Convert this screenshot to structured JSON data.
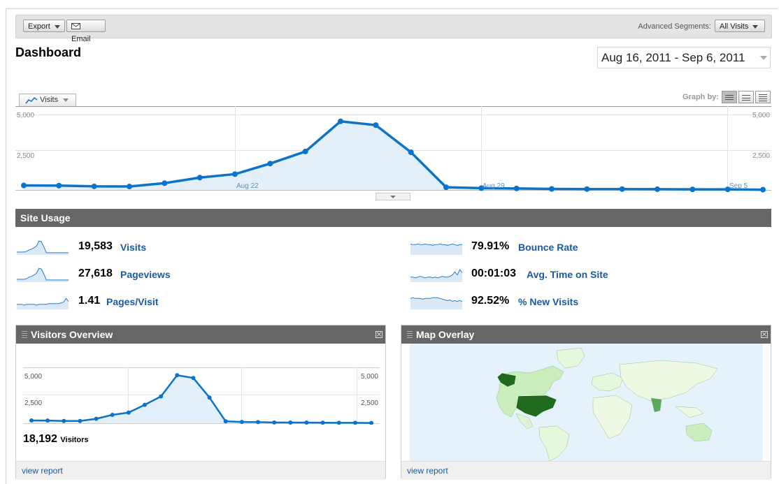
{
  "toolbar": {
    "export_label": "Export",
    "email_label": "Email",
    "segments_label": "Advanced Segments:",
    "segments_value": "All Visits"
  },
  "page_title": "Dashboard",
  "date_range": "Aug 16, 2011 - Sep 6, 2011",
  "metric_selector": "Visits",
  "graph_by_label": "Graph by:",
  "main_chart": {
    "y_ticks_left": [
      "5,000",
      "2,500"
    ],
    "y_ticks_right": [
      "5,000",
      "2,500"
    ],
    "x_labels": [
      "Aug 22",
      "Aug 29",
      "Sep 5"
    ]
  },
  "site_usage": {
    "title": "Site Usage",
    "metrics": [
      {
        "value": "19,583",
        "label": "Visits"
      },
      {
        "value": "27,618",
        "label": "Pageviews"
      },
      {
        "value": "1.41",
        "label": "Pages/Visit"
      },
      {
        "value": "79.91%",
        "label": "Bounce Rate"
      },
      {
        "value": "00:01:03",
        "label": "Avg. Time on Site"
      },
      {
        "value": "92.52%",
        "label": "% New Visits"
      }
    ]
  },
  "visitors_overview": {
    "title": "Visitors Overview",
    "y_ticks_left": [
      "5,000",
      "2,500"
    ],
    "y_ticks_right": [
      "5,000",
      "2,500"
    ],
    "visitors_value": "18,192",
    "visitors_label": "Visitors",
    "view_report": "view report"
  },
  "map_overlay": {
    "title": "Map Overlay",
    "view_report": "view report"
  },
  "colors": {
    "line": "#0b73c9",
    "area": "#e3eff9",
    "section_bar": "#666666",
    "link": "#1a5aa0"
  },
  "chart_data": [
    {
      "type": "area",
      "title": "",
      "x": [
        "Aug 16",
        "Aug 17",
        "Aug 18",
        "Aug 19",
        "Aug 20",
        "Aug 21",
        "Aug 22",
        "Aug 23",
        "Aug 24",
        "Aug 25",
        "Aug 26",
        "Aug 27",
        "Aug 28",
        "Aug 29",
        "Aug 30",
        "Aug 31",
        "Sep 1",
        "Sep 2",
        "Sep 3",
        "Sep 4",
        "Sep 5",
        "Sep 6"
      ],
      "series": [
        {
          "name": "Visits",
          "values": [
            300,
            290,
            240,
            230,
            450,
            820,
            1050,
            1750,
            2550,
            4550,
            4300,
            2500,
            180,
            120,
            100,
            70,
            60,
            60,
            50,
            40,
            40,
            20
          ]
        }
      ],
      "ylim": [
        0,
        5000
      ],
      "x_tick_labels": [
        "Aug 22",
        "Aug 29",
        "Sep 5"
      ],
      "grid": true
    },
    {
      "type": "area",
      "title": "",
      "x": [
        "Aug 16",
        "Aug 17",
        "Aug 18",
        "Aug 19",
        "Aug 20",
        "Aug 21",
        "Aug 22",
        "Aug 23",
        "Aug 24",
        "Aug 25",
        "Aug 26",
        "Aug 27",
        "Aug 28",
        "Aug 29",
        "Aug 30",
        "Aug 31",
        "Sep 1",
        "Sep 2",
        "Sep 3",
        "Sep 4",
        "Sep 5",
        "Sep 6"
      ],
      "series": [
        {
          "name": "Visitors",
          "values": [
            250,
            240,
            200,
            200,
            400,
            750,
            950,
            1650,
            2400,
            4300,
            4050,
            2300,
            170,
            120,
            100,
            70,
            60,
            60,
            50,
            40,
            40,
            20
          ]
        }
      ],
      "ylim": [
        0,
        5000
      ],
      "grid": true
    }
  ],
  "sparklines": {
    "Visits": [
      3,
      3,
      3,
      3,
      4,
      6,
      7,
      9,
      11,
      18,
      17,
      10,
      2,
      2,
      2,
      2,
      2,
      2,
      2,
      2,
      2,
      2
    ],
    "Pageviews": [
      3,
      3,
      3,
      3,
      4,
      6,
      7,
      9,
      11,
      18,
      17,
      10,
      2,
      2,
      2,
      2,
      2,
      2,
      2,
      2,
      2,
      2
    ],
    "Pages/Visit": [
      6,
      6,
      6,
      5,
      6,
      6,
      6,
      6,
      5,
      6,
      6,
      6,
      6,
      7,
      7,
      7,
      7,
      7,
      8,
      9,
      14,
      10
    ],
    "Bounce Rate": [
      14,
      13,
      13,
      14,
      13,
      13,
      14,
      13,
      13,
      12,
      13,
      13,
      14,
      13,
      13,
      12,
      13,
      14,
      13,
      12,
      13,
      13
    ],
    "Avg. Time on Site": [
      6,
      6,
      5,
      6,
      7,
      6,
      5,
      6,
      6,
      5,
      6,
      5,
      6,
      7,
      6,
      6,
      7,
      9,
      13,
      9,
      16,
      12
    ],
    "% New Visits": [
      14,
      15,
      14,
      14,
      14,
      13,
      14,
      14,
      14,
      15,
      15,
      15,
      14,
      13,
      12,
      11,
      12,
      10,
      11,
      10,
      11,
      10
    ]
  }
}
